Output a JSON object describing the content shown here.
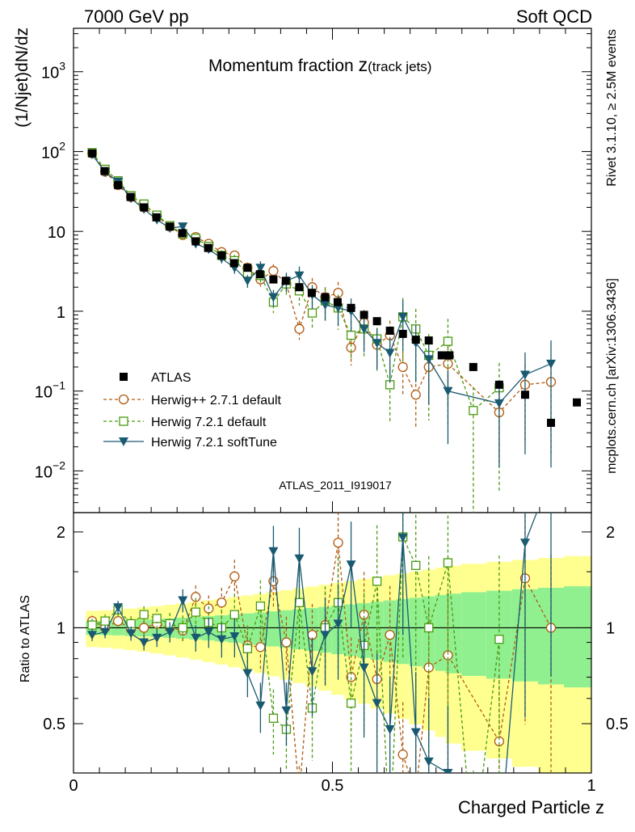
{
  "header": {
    "left": "7000 GeV pp",
    "right": "Soft QCD"
  },
  "side_labels": {
    "top": "Rivet 3.1.10, ≥ 2.5M events",
    "bottom": "mcplots.cern.ch [arXiv:1306.3436]"
  },
  "chart_data": {
    "type": "scatter",
    "title_main": "Momentum fraction ",
    "title_var": "z",
    "title_sub": "(track jets)",
    "watermark": "ATLAS_2011_I919017",
    "xlabel": "Charged Particle z",
    "ylabel": "(1/Njet)dN/dz",
    "ratio_ylabel": "Ratio to ATLAS",
    "xlim": [
      0,
      1
    ],
    "ylim_log": [
      0.003,
      3500
    ],
    "ratio_ylim": [
      0.35,
      2.3
    ],
    "x_ticks": [
      {
        "v": 0,
        "label": "0"
      },
      {
        "v": 0.5,
        "label": "0.5"
      },
      {
        "v": 1,
        "label": "1"
      }
    ],
    "y_ticks": [
      {
        "v": 0.01,
        "base": "10",
        "exp": "−2"
      },
      {
        "v": 0.1,
        "base": "10",
        "exp": "−1"
      },
      {
        "v": 1,
        "base": "1",
        "exp": ""
      },
      {
        "v": 10,
        "base": "10",
        "exp": ""
      },
      {
        "v": 100,
        "base": "10",
        "exp": "2"
      },
      {
        "v": 1000,
        "base": "10",
        "exp": "3"
      }
    ],
    "ratio_ticks": [
      {
        "v": 0.5,
        "label": "0.5"
      },
      {
        "v": 1,
        "label": "1"
      },
      {
        "v": 2,
        "label": "2"
      }
    ],
    "legend": [
      {
        "key": "atlas",
        "label": "ATLAS"
      },
      {
        "key": "herwigpp",
        "label": "Herwig++ 2.7.1 default"
      },
      {
        "key": "herwig721",
        "label": "Herwig 7.2.1 default"
      },
      {
        "key": "softtune",
        "label": "Herwig 7.2.1 softTune"
      }
    ],
    "colors": {
      "atlas": "#000000",
      "herwigpp": "#b05a10",
      "herwig721": "#4a9a10",
      "softtune": "#1a5a70",
      "band_inner": "#90f090",
      "band_outer": "#ffff90"
    },
    "x": [
      0.04,
      0.06,
      0.08,
      0.1,
      0.12,
      0.14,
      0.16,
      0.18,
      0.2,
      0.22,
      0.24,
      0.26,
      0.28,
      0.3,
      0.32,
      0.34,
      0.36,
      0.38,
      0.4,
      0.42,
      0.44,
      0.46,
      0.48,
      0.5,
      0.52,
      0.54,
      0.56,
      0.58,
      0.6,
      0.62,
      0.64,
      0.66,
      0.68,
      0.7,
      0.72,
      0.74,
      0.76,
      0.78,
      0.8,
      0.82,
      0.84,
      0.86,
      0.88,
      0.9,
      0.92,
      0.94,
      0.96,
      0.98
    ],
    "atlas": [
      95,
      57,
      38,
      27,
      20,
      15,
      11.5,
      9.5,
      7.5,
      6.2,
      5,
      4,
      3.5,
      2.9,
      2.5,
      2.4,
      2,
      1.7,
      1.5,
      1.3,
      1.1,
      0.9,
      0.75,
      0.57,
      0.52,
      0.44,
      0.43,
      0.28,
      0.28,
      0.2,
      0.12,
      0.09,
      0.04,
      0.072
    ],
    "atlas_x": [
      0.036,
      0.06,
      0.086,
      0.11,
      0.136,
      0.16,
      0.186,
      0.21,
      0.236,
      0.26,
      0.286,
      0.31,
      0.336,
      0.36,
      0.386,
      0.41,
      0.436,
      0.46,
      0.486,
      0.51,
      0.536,
      0.561,
      0.586,
      0.611,
      0.636,
      0.661,
      0.686,
      0.711,
      0.726,
      0.772,
      0.822,
      0.872,
      0.922,
      0.972
    ],
    "herwigpp_x": [
      0.036,
      0.061,
      0.086,
      0.111,
      0.136,
      0.161,
      0.186,
      0.211,
      0.236,
      0.261,
      0.286,
      0.311,
      0.336,
      0.361,
      0.386,
      0.411,
      0.436,
      0.461,
      0.486,
      0.511,
      0.536,
      0.561,
      0.586,
      0.611,
      0.636,
      0.661,
      0.686,
      0.723,
      0.822,
      0.872,
      0.922
    ],
    "herwigpp": [
      95,
      56,
      38,
      27,
      20,
      15.5,
      11.5,
      9,
      8.5,
      7,
      5.5,
      5,
      3.5,
      2.5,
      3.2,
      2.2,
      0.6,
      2.0,
      1.5,
      1.7,
      0.35,
      0.72,
      0.38,
      0.5,
      0.2,
      0.09,
      0.2,
      0.22,
      0.054,
      0.12,
      0.13
    ],
    "herwig721_x": [
      0.036,
      0.061,
      0.086,
      0.111,
      0.136,
      0.161,
      0.186,
      0.211,
      0.236,
      0.261,
      0.286,
      0.311,
      0.336,
      0.361,
      0.386,
      0.411,
      0.436,
      0.461,
      0.486,
      0.511,
      0.536,
      0.561,
      0.586,
      0.611,
      0.636,
      0.661,
      0.686,
      0.723,
      0.772,
      0.822
    ],
    "herwig721": [
      97,
      60,
      43,
      28,
      22,
      16,
      11.8,
      9.3,
      8.2,
      6.5,
      5,
      4.3,
      3,
      2.8,
      1.3,
      2.2,
      1.8,
      0.95,
      1.35,
      1.1,
      0.5,
      0.6,
      0.45,
      0.12,
      0.85,
      0.6,
      0.28,
      0.42,
      0.057,
      0.11
    ],
    "softtune_x": [
      0.036,
      0.061,
      0.086,
      0.111,
      0.136,
      0.161,
      0.186,
      0.211,
      0.236,
      0.261,
      0.286,
      0.311,
      0.336,
      0.361,
      0.386,
      0.411,
      0.436,
      0.461,
      0.486,
      0.511,
      0.536,
      0.561,
      0.586,
      0.611,
      0.636,
      0.661,
      0.686,
      0.723,
      0.822,
      0.872,
      0.922
    ],
    "softtune": [
      92,
      55,
      42,
      26,
      19,
      14,
      11,
      11.5,
      7,
      6,
      4.6,
      3.5,
      2.4,
      3.5,
      1.5,
      2.4,
      2.8,
      1.6,
      1.2,
      1.1,
      1.0,
      0.6,
      0.4,
      0.3,
      0.85,
      0.4,
      0.25,
      0.1,
      0.07,
      0.16,
      0.22
    ],
    "ratio_herwigpp": [
      1.05,
      1.0,
      1.05,
      0.99,
      1.0,
      1.03,
      1.0,
      0.98,
      1.25,
      1.15,
      1.2,
      1.45,
      0.88,
      0.87,
      1.4,
      0.9,
      0.3,
      0.95,
      1.02,
      1.85,
      0.7,
      1.1,
      0.69,
      0.95,
      0.4,
      0.3,
      0.75,
      0.82,
      0.44,
      1.43,
      1.0
    ],
    "ratio_herwig721": [
      1.02,
      1.05,
      1.14,
      1.03,
      1.1,
      1.07,
      1.03,
      1.0,
      1.12,
      1.04,
      1.0,
      1.1,
      0.86,
      1.17,
      0.52,
      0.48,
      1.2,
      0.56,
      1.0,
      1.2,
      0.58,
      0.88,
      1.4,
      0.22,
      1.93,
      1.57,
      1.0,
      1.6,
      0.14,
      0.92
    ],
    "ratio_softtune": [
      0.95,
      0.97,
      1.16,
      0.96,
      0.9,
      0.93,
      0.97,
      1.22,
      0.93,
      0.97,
      0.92,
      0.94,
      0.72,
      0.57,
      1.74,
      0.55,
      1.65,
      0.73,
      0.95,
      1.03,
      1.58,
      0.75,
      0.58,
      0.48,
      1.92,
      0.47,
      0.38,
      0.35,
      0.1,
      1.85,
      3.0
    ]
  }
}
